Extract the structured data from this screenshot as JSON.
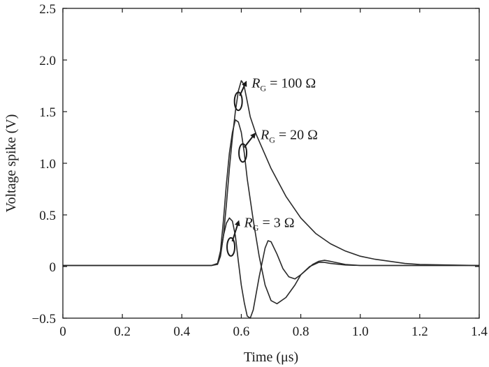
{
  "chart_data": {
    "type": "line",
    "title": "",
    "xlabel": "Time (μs)",
    "ylabel": "Voltage spike (V)",
    "xlim": [
      0,
      1.4
    ],
    "ylim": [
      -0.5,
      2.5
    ],
    "xticks": [
      0,
      0.2,
      0.4,
      0.6,
      0.8,
      1.0,
      1.2,
      1.4
    ],
    "xtick_labels": [
      "0",
      "0.2",
      "0.4",
      "0.6",
      "0.8",
      "1.0",
      "1.2",
      "1.4"
    ],
    "yticks": [
      -0.5,
      0,
      0.5,
      1.0,
      1.5,
      2.0,
      2.5
    ],
    "ytick_labels": [
      "−0.5",
      "0",
      "0.5",
      "1.0",
      "1.5",
      "2.0",
      "2.5"
    ],
    "grid": false,
    "legend": "none",
    "series": [
      {
        "x": [
          0,
          0.1,
          0.2,
          0.3,
          0.4,
          0.45,
          0.5,
          0.52,
          0.53,
          0.54,
          0.55,
          0.56,
          0.57,
          0.58,
          0.59,
          0.6,
          0.605,
          0.61,
          0.62,
          0.63,
          0.65,
          0.7,
          0.75,
          0.8,
          0.85,
          0.9,
          0.95,
          1.0,
          1.05,
          1.1,
          1.15,
          1.2,
          1.3,
          1.4
        ],
        "y": [
          0.01,
          0.01,
          0.01,
          0.01,
          0.01,
          0.01,
          0.01,
          0.02,
          0.1,
          0.3,
          0.6,
          0.95,
          1.25,
          1.5,
          1.7,
          1.8,
          1.78,
          1.74,
          1.6,
          1.45,
          1.28,
          0.95,
          0.68,
          0.47,
          0.32,
          0.22,
          0.15,
          0.1,
          0.07,
          0.05,
          0.03,
          0.02,
          0.015,
          0.01
        ]
      },
      {
        "x": [
          0,
          0.1,
          0.2,
          0.3,
          0.4,
          0.45,
          0.5,
          0.52,
          0.53,
          0.54,
          0.55,
          0.56,
          0.57,
          0.58,
          0.59,
          0.6,
          0.61,
          0.62,
          0.64,
          0.66,
          0.68,
          0.7,
          0.72,
          0.75,
          0.78,
          0.8,
          0.83,
          0.86,
          0.88,
          0.9,
          0.95,
          1.0,
          1.1,
          1.2,
          1.3,
          1.4
        ],
        "y": [
          0.01,
          0.01,
          0.01,
          0.01,
          0.01,
          0.01,
          0.01,
          0.03,
          0.15,
          0.45,
          0.8,
          1.1,
          1.3,
          1.42,
          1.4,
          1.3,
          1.1,
          0.85,
          0.45,
          0.1,
          -0.18,
          -0.33,
          -0.36,
          -0.3,
          -0.18,
          -0.08,
          0.0,
          0.04,
          0.04,
          0.03,
          0.015,
          0.01,
          0.01,
          0.01,
          0.01,
          0.01
        ]
      },
      {
        "x": [
          0,
          0.1,
          0.2,
          0.3,
          0.4,
          0.45,
          0.5,
          0.52,
          0.53,
          0.54,
          0.55,
          0.56,
          0.57,
          0.58,
          0.59,
          0.6,
          0.61,
          0.62,
          0.63,
          0.64,
          0.66,
          0.68,
          0.69,
          0.7,
          0.72,
          0.74,
          0.76,
          0.78,
          0.8,
          0.82,
          0.84,
          0.86,
          0.88,
          0.9,
          0.95,
          1.0,
          1.1,
          1.2,
          1.3,
          1.4
        ],
        "y": [
          0.01,
          0.01,
          0.01,
          0.01,
          0.01,
          0.01,
          0.01,
          0.03,
          0.12,
          0.3,
          0.42,
          0.47,
          0.44,
          0.3,
          0.05,
          -0.18,
          -0.35,
          -0.48,
          -0.5,
          -0.42,
          -0.1,
          0.18,
          0.25,
          0.24,
          0.12,
          -0.02,
          -0.1,
          -0.12,
          -0.08,
          -0.03,
          0.02,
          0.05,
          0.06,
          0.05,
          0.02,
          0.01,
          0.01,
          0.01,
          0.01,
          0.01
        ]
      }
    ],
    "annotations": [
      {
        "main": "R",
        "sub": "G",
        "rest": " = 100 Ω",
        "x": 0.63,
        "y": 1.8,
        "ellipse_x": 0.59,
        "ellipse_y": 1.6
      },
      {
        "main": "R",
        "sub": "G",
        "rest": " = 20 Ω",
        "x": 0.66,
        "y": 1.3,
        "ellipse_x": 0.605,
        "ellipse_y": 1.1
      },
      {
        "main": "R",
        "sub": "G",
        "rest": " = 3 Ω",
        "x": 0.605,
        "y": 0.45,
        "ellipse_x": 0.565,
        "ellipse_y": 0.19
      }
    ]
  }
}
